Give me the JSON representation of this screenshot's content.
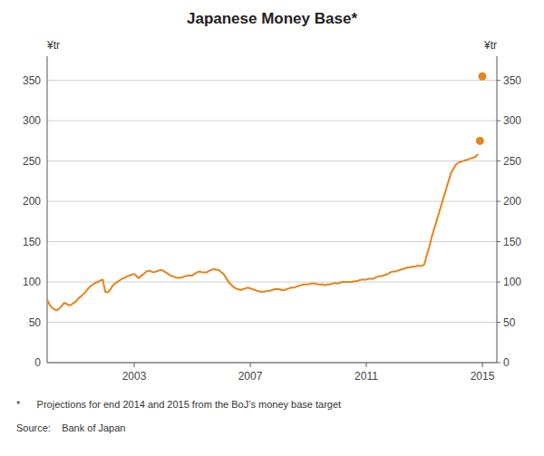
{
  "chart_data": {
    "type": "line",
    "title": "Japanese Money Base*",
    "ylabel": "¥tr",
    "y2label": "¥tr",
    "annotations": [
      "*      Projections for end 2014 and 2015 from the BoJ’s money base target",
      "Source:    Bank of Japan"
    ],
    "xlim": [
      2000.0,
      2015.5
    ],
    "xticks": [
      2003,
      2007,
      2011,
      2015
    ],
    "ylim": [
      0,
      380
    ],
    "yticks": [
      0,
      50,
      100,
      150,
      200,
      250,
      300,
      350
    ],
    "y2lim": [
      0,
      380
    ],
    "y2ticks": [
      0,
      50,
      100,
      150,
      200,
      250,
      300,
      350
    ],
    "grid": true,
    "series": [
      {
        "type": "line",
        "color": "#E8831A",
        "x": [
          2000.0,
          2000.083,
          2000.167,
          2000.25,
          2000.333,
          2000.417,
          2000.5,
          2000.583,
          2000.667,
          2000.75,
          2000.833,
          2000.917,
          2001.0,
          2001.083,
          2001.167,
          2001.25,
          2001.333,
          2001.417,
          2001.5,
          2001.583,
          2001.667,
          2001.75,
          2001.833,
          2001.917,
          2002.0,
          2002.083,
          2002.167,
          2002.25,
          2002.333,
          2002.417,
          2002.5,
          2002.583,
          2002.667,
          2002.75,
          2002.833,
          2002.917,
          2003.0,
          2003.083,
          2003.167,
          2003.25,
          2003.333,
          2003.417,
          2003.5,
          2003.583,
          2003.667,
          2003.75,
          2003.833,
          2003.917,
          2004.0,
          2004.083,
          2004.167,
          2004.25,
          2004.333,
          2004.417,
          2004.5,
          2004.583,
          2004.667,
          2004.75,
          2004.833,
          2004.917,
          2005.0,
          2005.083,
          2005.167,
          2005.25,
          2005.333,
          2005.417,
          2005.5,
          2005.583,
          2005.667,
          2005.75,
          2005.833,
          2005.917,
          2006.0,
          2006.083,
          2006.167,
          2006.25,
          2006.333,
          2006.417,
          2006.5,
          2006.583,
          2006.667,
          2006.75,
          2006.833,
          2006.917,
          2007.0,
          2007.083,
          2007.167,
          2007.25,
          2007.333,
          2007.417,
          2007.5,
          2007.583,
          2007.667,
          2007.75,
          2007.833,
          2007.917,
          2008.0,
          2008.083,
          2008.167,
          2008.25,
          2008.333,
          2008.417,
          2008.5,
          2008.583,
          2008.667,
          2008.75,
          2008.833,
          2008.917,
          2009.0,
          2009.083,
          2009.167,
          2009.25,
          2009.333,
          2009.417,
          2009.5,
          2009.583,
          2009.667,
          2009.75,
          2009.833,
          2009.917,
          2010.0,
          2010.083,
          2010.167,
          2010.25,
          2010.333,
          2010.417,
          2010.5,
          2010.583,
          2010.667,
          2010.75,
          2010.833,
          2010.917,
          2011.0,
          2011.083,
          2011.167,
          2011.25,
          2011.333,
          2011.417,
          2011.5,
          2011.583,
          2011.667,
          2011.75,
          2011.833,
          2011.917,
          2012.0,
          2012.083,
          2012.167,
          2012.25,
          2012.333,
          2012.417,
          2012.5,
          2012.583,
          2012.667,
          2012.75,
          2012.833,
          2012.917,
          2013.0,
          2013.083,
          2013.167,
          2013.25,
          2013.333,
          2013.417,
          2013.5,
          2013.583,
          2013.667,
          2013.75,
          2013.833,
          2013.917,
          2014.0,
          2014.083,
          2014.167,
          2014.25,
          2014.333,
          2014.417,
          2014.5,
          2014.583,
          2014.667,
          2014.75,
          2014.833
        ],
        "values": [
          78,
          72,
          68,
          66,
          65,
          67,
          70,
          74,
          73,
          71,
          72,
          74,
          76,
          80,
          82,
          85,
          88,
          92,
          95,
          97,
          99,
          100,
          102,
          103,
          88,
          87,
          90,
          95,
          98,
          100,
          102,
          104,
          105,
          107,
          108,
          109,
          110,
          107,
          105,
          108,
          110,
          113,
          114,
          113,
          112,
          113,
          114,
          115,
          114,
          112,
          110,
          108,
          107,
          106,
          105,
          105,
          106,
          107,
          108,
          108,
          108,
          110,
          112,
          113,
          112,
          112,
          112,
          114,
          115,
          116,
          115,
          115,
          112,
          110,
          105,
          100,
          97,
          94,
          92,
          91,
          90,
          91,
          92,
          93,
          92,
          91,
          90,
          89,
          88,
          88,
          88,
          89,
          89,
          90,
          91,
          91,
          91,
          90,
          90,
          91,
          92,
          93,
          93,
          94,
          95,
          96,
          97,
          97,
          97,
          98,
          98,
          98,
          97,
          97,
          97,
          96,
          97,
          97,
          98,
          99,
          98,
          99,
          100,
          100,
          100,
          100,
          100,
          101,
          101,
          102,
          103,
          103,
          103,
          104,
          104,
          104,
          106,
          107,
          107,
          108,
          109,
          110,
          112,
          113,
          113,
          114,
          115,
          116,
          117,
          118,
          118,
          119,
          119,
          120,
          120,
          120,
          122,
          133,
          143,
          155,
          165,
          175,
          185,
          195,
          205,
          215,
          225,
          235,
          240,
          245,
          248,
          249,
          250,
          251,
          252,
          253,
          254,
          255,
          258
        ]
      },
      {
        "type": "scatter",
        "marker": "circle",
        "color": "#E8831A",
        "x": [
          2014.917,
          2015.0
        ],
        "values": [
          275,
          355
        ]
      }
    ]
  }
}
